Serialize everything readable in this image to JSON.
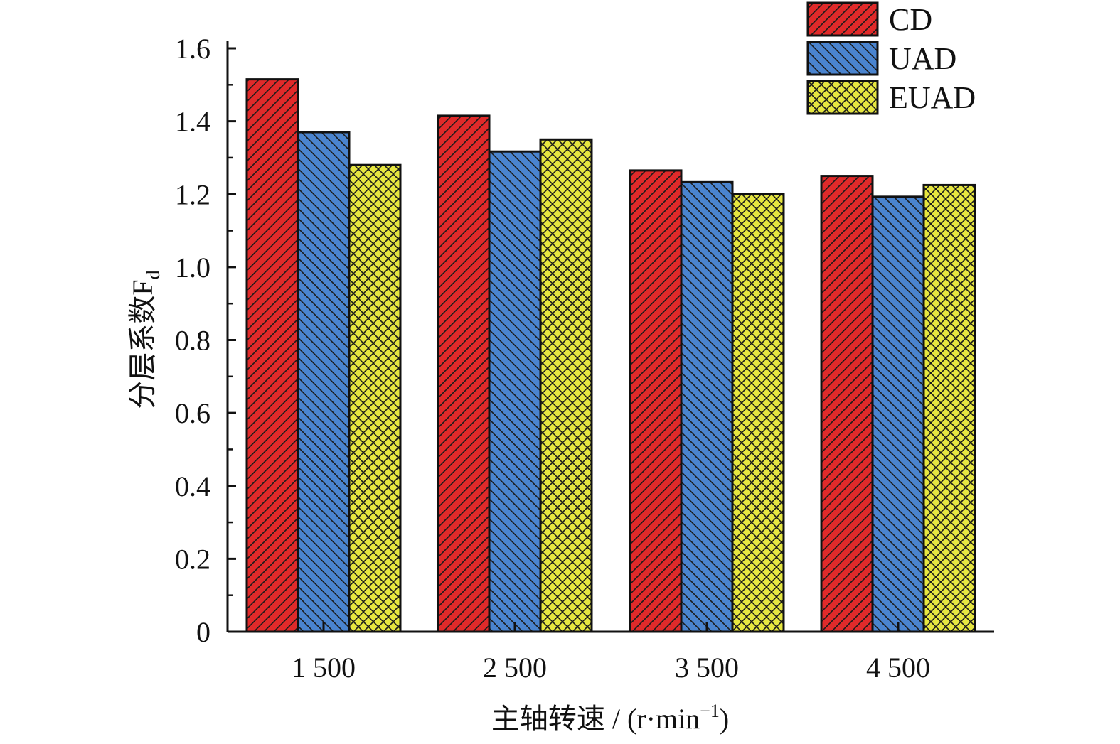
{
  "chart_data": {
    "type": "bar",
    "categories": [
      "1 500",
      "2 500",
      "3 500",
      "4 500"
    ],
    "series": [
      {
        "name": "CD",
        "color": "#e02a2a",
        "pattern": "diagonal-up",
        "values": [
          1.515,
          1.415,
          1.265,
          1.25
        ]
      },
      {
        "name": "UAD",
        "color": "#4a84cf",
        "pattern": "diagonal-down",
        "values": [
          1.37,
          1.317,
          1.233,
          1.193
        ]
      },
      {
        "name": "EUAD",
        "color": "#e6e640",
        "pattern": "crosshatch",
        "values": [
          1.28,
          1.35,
          1.2,
          1.225
        ]
      }
    ],
    "ylim": [
      0,
      1.6
    ],
    "yticks": [
      "0",
      "0.2",
      "0.4",
      "0.6",
      "0.8",
      "1.0",
      "1.2",
      "1.4",
      "1.6"
    ],
    "ylabel": "分层系数F",
    "ylabel_sub": "d",
    "xlabel_main": "主轴转速 / (r·min",
    "xlabel_sup": "−1",
    "xlabel_close": ")",
    "grid": false,
    "legend_position": "top-right"
  }
}
